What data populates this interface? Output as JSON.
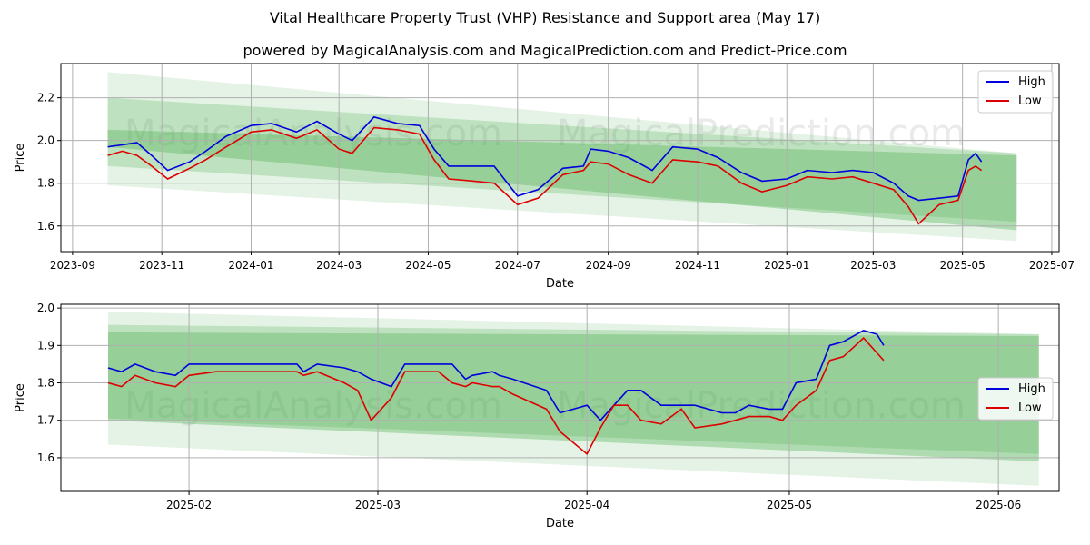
{
  "title": "Vital Healthcare Property Trust (VHP) Resistance and Support area (May 17)",
  "subtitle": "powered by MagicalAnalysis.com and MagicalPrediction.com and Predict-Price.com",
  "watermarks": [
    "MagicalAnalysis.com",
    "MagicalPrediction.com"
  ],
  "colors": {
    "high": "#0000dd",
    "low": "#dd0000",
    "band": "#4caf50",
    "grid": "#b0b0b0"
  },
  "chart_data": [
    {
      "type": "line",
      "xlabel": "Date",
      "ylabel": "Price",
      "xlim": [
        "2023-08-24",
        "2025-07-06"
      ],
      "ylim": [
        1.48,
        2.36
      ],
      "x_ticks": [
        "2023-09",
        "2023-11",
        "2024-01",
        "2024-03",
        "2024-05",
        "2024-07",
        "2024-09",
        "2024-11",
        "2025-01",
        "2025-03",
        "2025-05",
        "2025-07"
      ],
      "y_ticks": [
        "1.6",
        "1.8",
        "2.0",
        "2.2"
      ],
      "grid": true,
      "legend": "top-right",
      "bands": [
        {
          "x": [
            "2023-09-25",
            "2025-06-07"
          ],
          "upper": [
            2.32,
            1.94
          ],
          "lower": [
            1.79,
            1.53
          ]
        },
        {
          "x": [
            "2023-09-25",
            "2025-06-07"
          ],
          "upper": [
            2.2,
            1.94
          ],
          "lower": [
            1.88,
            1.62
          ]
        },
        {
          "x": [
            "2023-09-25",
            "2025-06-07"
          ],
          "upper": [
            2.05,
            1.93
          ],
          "lower": [
            1.97,
            1.58
          ]
        }
      ],
      "series": [
        {
          "name": "High",
          "x": [
            "2023-09-25",
            "2023-10-05",
            "2023-10-15",
            "2023-10-25",
            "2023-11-05",
            "2023-11-20",
            "2023-12-01",
            "2023-12-15",
            "2024-01-01",
            "2024-01-15",
            "2024-02-01",
            "2024-02-15",
            "2024-03-01",
            "2024-03-10",
            "2024-03-25",
            "2024-04-10",
            "2024-04-25",
            "2024-05-05",
            "2024-05-15",
            "2024-06-01",
            "2024-06-15",
            "2024-07-01",
            "2024-07-15",
            "2024-08-01",
            "2024-08-15",
            "2024-08-20",
            "2024-09-01",
            "2024-09-15",
            "2024-10-01",
            "2024-10-15",
            "2024-11-01",
            "2024-11-15",
            "2024-12-01",
            "2024-12-15",
            "2025-01-01",
            "2025-01-15",
            "2025-02-01",
            "2025-02-15",
            "2025-03-01",
            "2025-03-15",
            "2025-03-25",
            "2025-04-01",
            "2025-04-15",
            "2025-04-28",
            "2025-05-05",
            "2025-05-10",
            "2025-05-14"
          ],
          "values": [
            1.97,
            1.98,
            1.99,
            1.93,
            1.86,
            1.9,
            1.95,
            2.02,
            2.07,
            2.08,
            2.04,
            2.09,
            2.03,
            2.0,
            2.11,
            2.08,
            2.07,
            1.96,
            1.88,
            1.88,
            1.88,
            1.74,
            1.77,
            1.87,
            1.88,
            1.96,
            1.95,
            1.92,
            1.86,
            1.97,
            1.96,
            1.92,
            1.85,
            1.81,
            1.82,
            1.86,
            1.85,
            1.86,
            1.85,
            1.8,
            1.74,
            1.72,
            1.73,
            1.74,
            1.91,
            1.94,
            1.9
          ]
        },
        {
          "name": "Low",
          "x": [
            "2023-09-25",
            "2023-10-05",
            "2023-10-15",
            "2023-10-25",
            "2023-11-05",
            "2023-11-20",
            "2023-12-01",
            "2023-12-15",
            "2024-01-01",
            "2024-01-15",
            "2024-02-01",
            "2024-02-15",
            "2024-03-01",
            "2024-03-10",
            "2024-03-25",
            "2024-04-10",
            "2024-04-25",
            "2024-05-05",
            "2024-05-15",
            "2024-06-01",
            "2024-06-15",
            "2024-07-01",
            "2024-07-15",
            "2024-08-01",
            "2024-08-15",
            "2024-08-20",
            "2024-09-01",
            "2024-09-15",
            "2024-10-01",
            "2024-10-15",
            "2024-11-01",
            "2024-11-15",
            "2024-12-01",
            "2024-12-15",
            "2025-01-01",
            "2025-01-15",
            "2025-02-01",
            "2025-02-15",
            "2025-03-01",
            "2025-03-15",
            "2025-03-25",
            "2025-04-01",
            "2025-04-15",
            "2025-04-28",
            "2025-05-05",
            "2025-05-10",
            "2025-05-14"
          ],
          "values": [
            1.93,
            1.95,
            1.93,
            1.88,
            1.82,
            1.87,
            1.91,
            1.97,
            2.04,
            2.05,
            2.01,
            2.05,
            1.96,
            1.94,
            2.06,
            2.05,
            2.03,
            1.91,
            1.82,
            1.81,
            1.8,
            1.7,
            1.73,
            1.84,
            1.86,
            1.9,
            1.89,
            1.84,
            1.8,
            1.91,
            1.9,
            1.88,
            1.8,
            1.76,
            1.79,
            1.83,
            1.82,
            1.83,
            1.8,
            1.77,
            1.69,
            1.61,
            1.7,
            1.72,
            1.86,
            1.88,
            1.86
          ]
        }
      ]
    },
    {
      "type": "line",
      "xlabel": "Date",
      "ylabel": "Price",
      "xlim": [
        "2025-01-13",
        "2025-06-10"
      ],
      "ylim": [
        1.51,
        2.01
      ],
      "x_ticks": [
        "2025-02",
        "2025-03",
        "2025-04",
        "2025-05",
        "2025-06"
      ],
      "y_ticks": [
        "1.6",
        "1.7",
        "1.8",
        "1.9",
        "2.0"
      ],
      "grid": true,
      "legend": "center-right",
      "bands": [
        {
          "x": [
            "2025-01-20",
            "2025-06-07"
          ],
          "upper": [
            1.99,
            1.93
          ],
          "lower": [
            1.635,
            1.525
          ]
        },
        {
          "x": [
            "2025-01-20",
            "2025-06-07"
          ],
          "upper": [
            1.955,
            1.93
          ],
          "lower": [
            1.705,
            1.61
          ]
        },
        {
          "x": [
            "2025-01-20",
            "2025-06-07"
          ],
          "upper": [
            1.935,
            1.925
          ],
          "lower": [
            1.7,
            1.59
          ]
        }
      ],
      "series": [
        {
          "name": "High",
          "x": [
            "2025-01-20",
            "2025-01-22",
            "2025-01-24",
            "2025-01-27",
            "2025-01-30",
            "2025-02-01",
            "2025-02-05",
            "2025-02-10",
            "2025-02-17",
            "2025-02-18",
            "2025-02-20",
            "2025-02-24",
            "2025-02-26",
            "2025-02-28",
            "2025-03-03",
            "2025-03-05",
            "2025-03-10",
            "2025-03-12",
            "2025-03-14",
            "2025-03-15",
            "2025-03-18",
            "2025-03-19",
            "2025-03-21",
            "2025-03-26",
            "2025-03-28",
            "2025-04-01",
            "2025-04-03",
            "2025-04-05",
            "2025-04-07",
            "2025-04-09",
            "2025-04-12",
            "2025-04-15",
            "2025-04-17",
            "2025-04-21",
            "2025-04-23",
            "2025-04-25",
            "2025-04-28",
            "2025-04-30",
            "2025-05-02",
            "2025-05-05",
            "2025-05-07",
            "2025-05-09",
            "2025-05-12",
            "2025-05-14",
            "2025-05-15"
          ],
          "values": [
            1.84,
            1.83,
            1.85,
            1.83,
            1.82,
            1.85,
            1.85,
            1.85,
            1.85,
            1.83,
            1.85,
            1.84,
            1.83,
            1.81,
            1.79,
            1.85,
            1.85,
            1.85,
            1.81,
            1.82,
            1.83,
            1.82,
            1.81,
            1.78,
            1.72,
            1.74,
            1.7,
            1.74,
            1.78,
            1.78,
            1.74,
            1.74,
            1.74,
            1.72,
            1.72,
            1.74,
            1.73,
            1.73,
            1.8,
            1.81,
            1.9,
            1.91,
            1.94,
            1.93,
            1.9
          ]
        },
        {
          "name": "Low",
          "x": [
            "2025-01-20",
            "2025-01-22",
            "2025-01-24",
            "2025-01-27",
            "2025-01-30",
            "2025-02-01",
            "2025-02-05",
            "2025-02-10",
            "2025-02-17",
            "2025-02-18",
            "2025-02-20",
            "2025-02-24",
            "2025-02-26",
            "2025-02-28",
            "2025-03-03",
            "2025-03-05",
            "2025-03-10",
            "2025-03-12",
            "2025-03-14",
            "2025-03-15",
            "2025-03-18",
            "2025-03-19",
            "2025-03-21",
            "2025-03-26",
            "2025-03-28",
            "2025-04-01",
            "2025-04-03",
            "2025-04-05",
            "2025-04-07",
            "2025-04-09",
            "2025-04-12",
            "2025-04-15",
            "2025-04-17",
            "2025-04-21",
            "2025-04-23",
            "2025-04-25",
            "2025-04-28",
            "2025-04-30",
            "2025-05-02",
            "2025-05-05",
            "2025-05-07",
            "2025-05-09",
            "2025-05-12",
            "2025-05-14",
            "2025-05-15"
          ],
          "values": [
            1.8,
            1.79,
            1.82,
            1.8,
            1.79,
            1.82,
            1.83,
            1.83,
            1.83,
            1.82,
            1.83,
            1.8,
            1.78,
            1.7,
            1.76,
            1.83,
            1.83,
            1.8,
            1.79,
            1.8,
            1.79,
            1.79,
            1.77,
            1.73,
            1.67,
            1.61,
            1.68,
            1.74,
            1.74,
            1.7,
            1.69,
            1.73,
            1.68,
            1.69,
            1.7,
            1.71,
            1.71,
            1.7,
            1.74,
            1.78,
            1.86,
            1.87,
            1.92,
            1.88,
            1.86
          ]
        }
      ]
    }
  ]
}
